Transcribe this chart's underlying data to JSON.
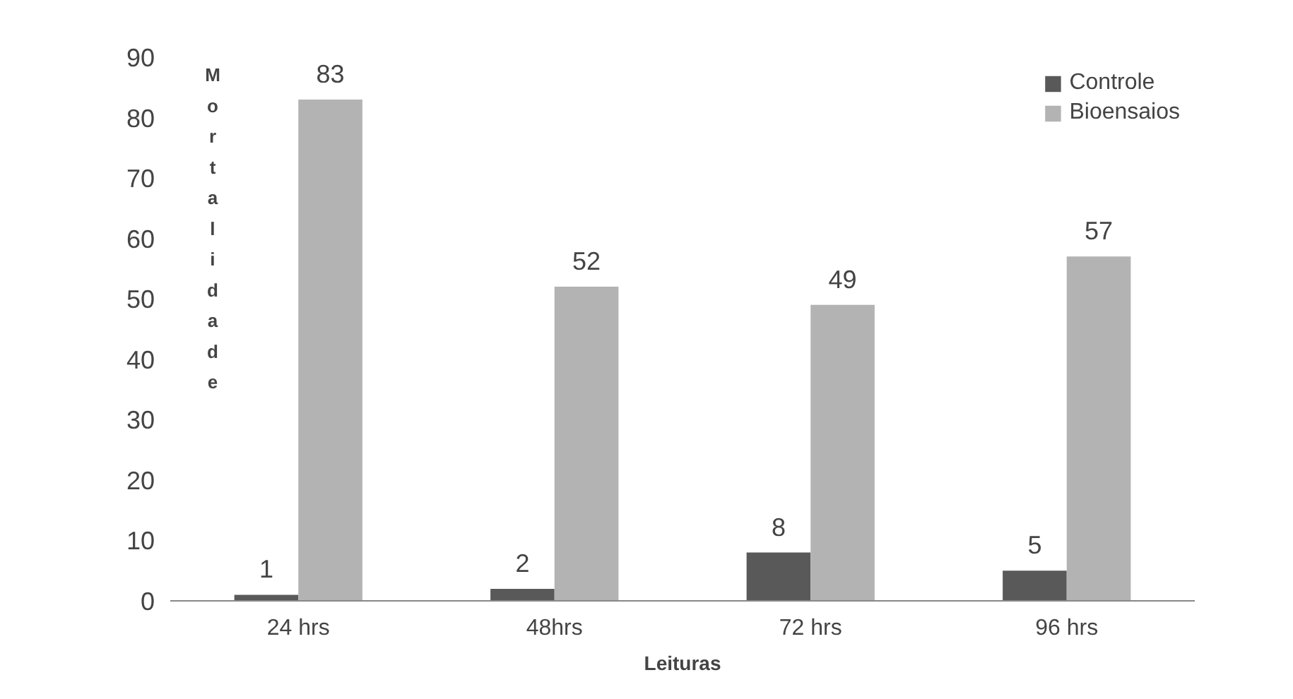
{
  "chart_data": {
    "type": "bar",
    "ylabel": "Mortalidade",
    "xlabel": "Leituras",
    "categories": [
      "24 hrs",
      "48hrs",
      "72 hrs",
      "96 hrs"
    ],
    "series": [
      {
        "name": "Controle",
        "color": "#595959",
        "values": [
          1,
          2,
          8,
          5
        ]
      },
      {
        "name": "Bioensaios",
        "color": "#b3b3b3",
        "values": [
          83,
          52,
          49,
          57
        ]
      }
    ],
    "ylim": [
      0,
      90
    ],
    "yticks": [
      0,
      10,
      20,
      30,
      40,
      50,
      60,
      70,
      80,
      90
    ],
    "data_labels": true,
    "grid": false,
    "legend": "top right"
  }
}
